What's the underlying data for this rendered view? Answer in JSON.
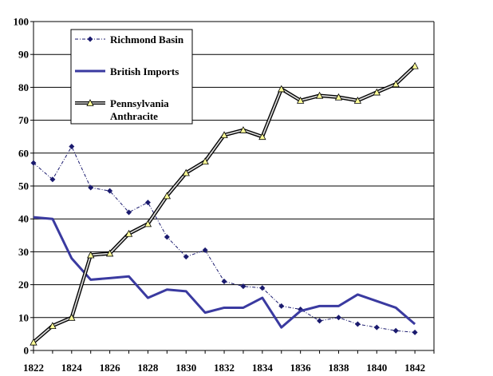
{
  "chart_data": {
    "type": "line",
    "title": "",
    "xlabel": "",
    "ylabel": "",
    "x": [
      1822,
      1823,
      1824,
      1825,
      1826,
      1827,
      1828,
      1829,
      1830,
      1831,
      1832,
      1833,
      1834,
      1835,
      1836,
      1837,
      1838,
      1839,
      1840,
      1841,
      1842
    ],
    "xlim": [
      1822,
      1843
    ],
    "ylim": [
      0,
      100
    ],
    "x_ticks": [
      "1822",
      "1824",
      "1826",
      "1828",
      "1830",
      "1832",
      "1834",
      "1836",
      "1838",
      "1840",
      "1842"
    ],
    "y_ticks": [
      "0",
      "10",
      "20",
      "30",
      "40",
      "50",
      "60",
      "70",
      "80",
      "90",
      "100"
    ],
    "grid": "horizontal",
    "legend_position": "top-left",
    "series": [
      {
        "name": "Richmond Basin",
        "color": "#1a1a6e",
        "style": "dash-dot",
        "marker": "diamond",
        "values": [
          57,
          52,
          62,
          49.5,
          48.5,
          42,
          45,
          34.5,
          28.5,
          30.5,
          21,
          19.5,
          19,
          13.5,
          12.5,
          9,
          10,
          8,
          7,
          6,
          5.5
        ]
      },
      {
        "name": "British Imports",
        "color": "#3a3aa0",
        "style": "solid",
        "marker": "none",
        "values": [
          40.5,
          40,
          28,
          21.5,
          22,
          22.5,
          16,
          18.5,
          18,
          11.5,
          13,
          13,
          16,
          7,
          12,
          13.5,
          13.5,
          17,
          15,
          13,
          8
        ]
      },
      {
        "name": "Pennsylvania Anthracite",
        "color": "#000000",
        "style": "double",
        "marker": "triangle",
        "values": [
          2.5,
          7.5,
          10,
          29,
          29.5,
          35.5,
          38.5,
          47,
          54,
          57.5,
          65.5,
          67,
          65,
          79.5,
          76,
          77.5,
          77,
          76,
          78.5,
          81,
          86.5
        ]
      }
    ],
    "legend": {
      "items": [
        {
          "label": "Richmond Basin"
        },
        {
          "label": "British Imports"
        },
        {
          "label_lines": [
            "Pennsylvania",
            "Anthracite"
          ]
        }
      ]
    }
  }
}
